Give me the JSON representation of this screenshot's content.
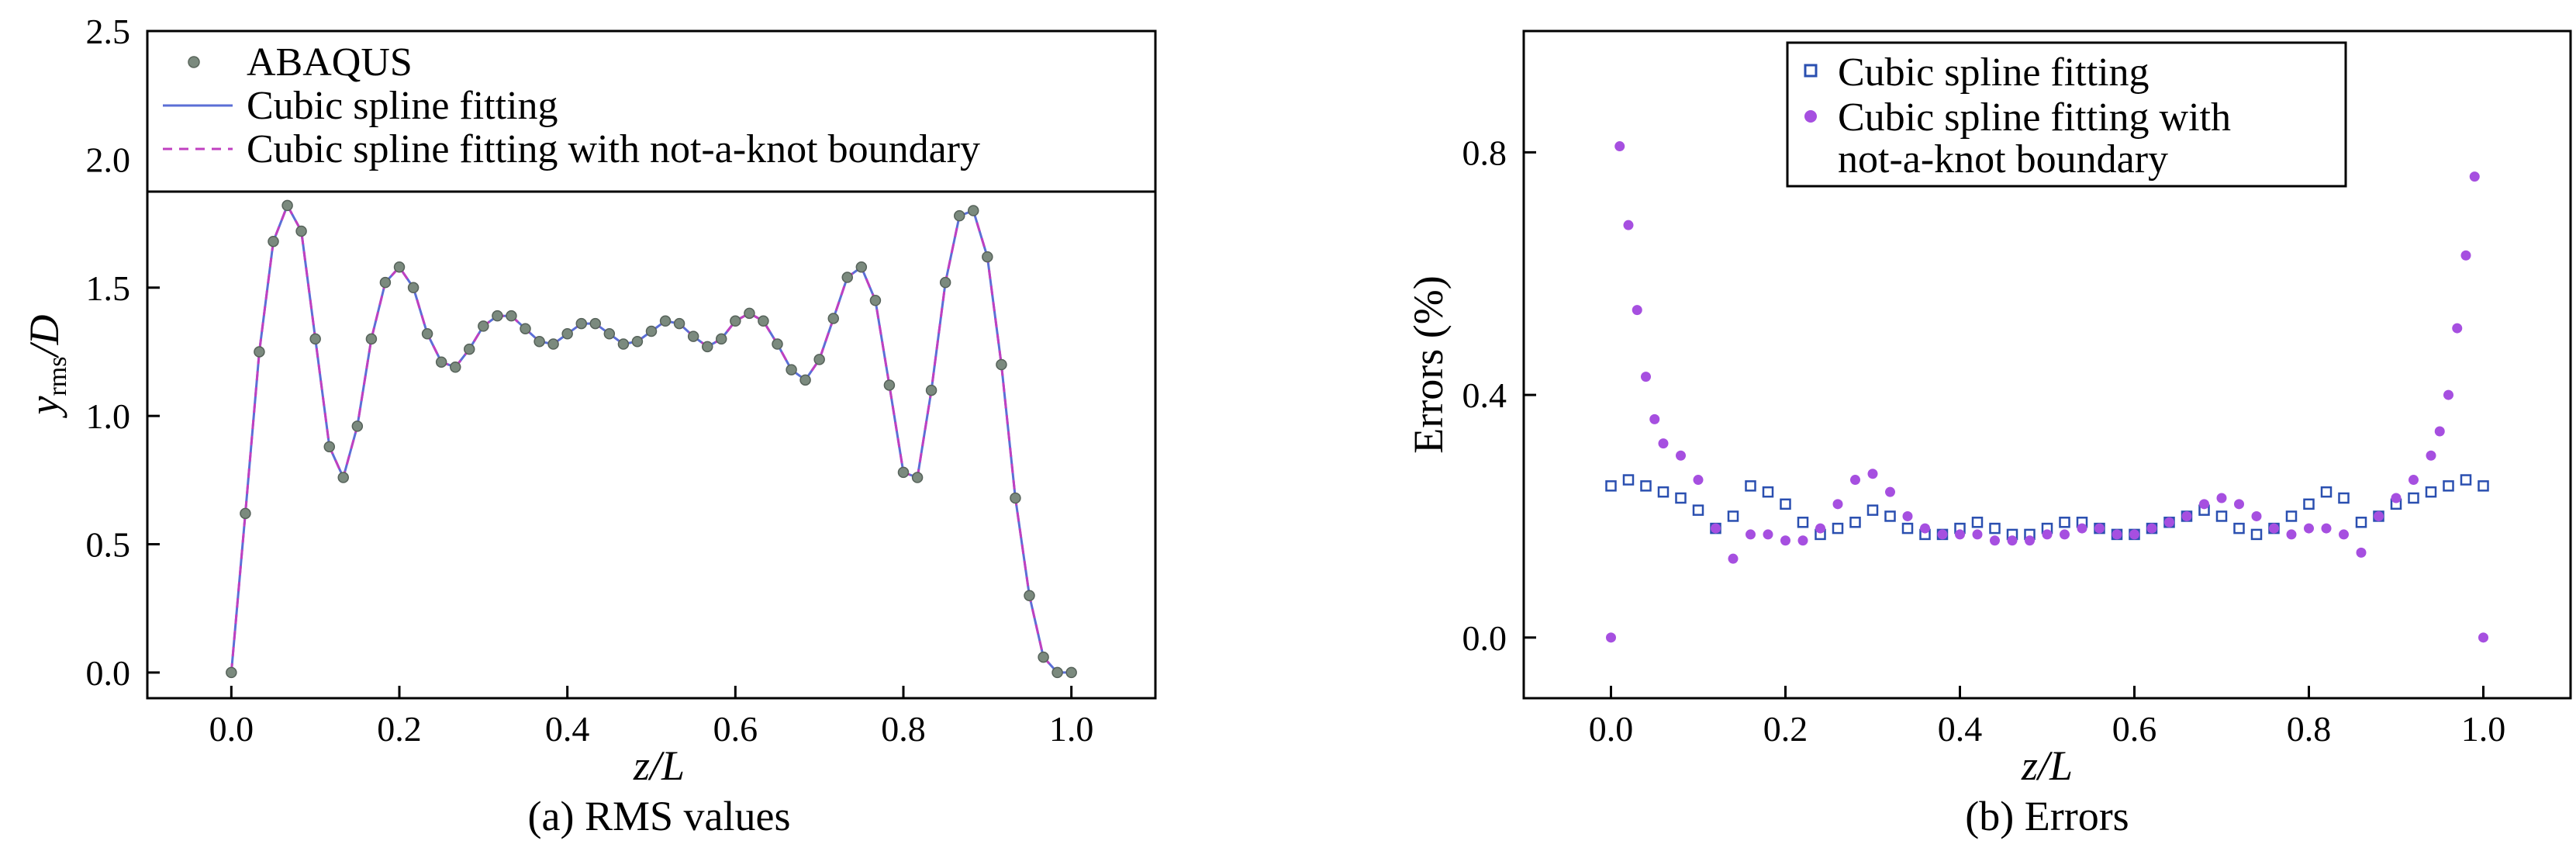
{
  "figure": {
    "captions": [
      "(a) RMS values",
      "(b) Errors"
    ]
  },
  "chart_data": [
    {
      "type": "line",
      "title": "(a) RMS values",
      "xlabel": "z/L",
      "ylabel_main": "y",
      "ylabel_sub": "rms",
      "ylabel_tail": "/D",
      "xlim": [
        -0.1,
        1.1
      ],
      "ylim": [
        -0.1,
        2.5
      ],
      "xticks": [
        "0.0",
        "0.2",
        "0.4",
        "0.6",
        "0.8",
        "1.0"
      ],
      "xtick_values": [
        0.0,
        0.2,
        0.4,
        0.6,
        0.8,
        1.0
      ],
      "yticks": [
        "0.0",
        "0.5",
        "1.0",
        "1.5",
        "2.0",
        "2.5"
      ],
      "ytick_values": [
        0.0,
        0.5,
        1.0,
        1.5,
        2.0,
        2.5
      ],
      "legend_position": "top",
      "x": [
        0.0,
        0.0167,
        0.0333,
        0.05,
        0.0667,
        0.0833,
        0.1,
        0.1167,
        0.1333,
        0.15,
        0.1667,
        0.1833,
        0.2,
        0.2167,
        0.2333,
        0.25,
        0.2667,
        0.2833,
        0.3,
        0.3167,
        0.3333,
        0.35,
        0.3667,
        0.3833,
        0.4,
        0.4167,
        0.4333,
        0.45,
        0.4667,
        0.4833,
        0.5,
        0.5167,
        0.5333,
        0.55,
        0.5667,
        0.5833,
        0.6,
        0.6167,
        0.6333,
        0.65,
        0.6667,
        0.6833,
        0.7,
        0.7167,
        0.7333,
        0.75,
        0.7667,
        0.7833,
        0.8,
        0.8167,
        0.8333,
        0.85,
        0.8667,
        0.8833,
        0.9,
        0.9167,
        0.9333,
        0.95,
        0.9667,
        0.9833,
        1.0
      ],
      "series": [
        {
          "name": "ABAQUS",
          "marker": "circle",
          "color": "#7b8a7e",
          "values": [
            0.0,
            0.62,
            1.25,
            1.68,
            1.82,
            1.72,
            1.3,
            0.88,
            0.76,
            0.96,
            1.3,
            1.52,
            1.58,
            1.5,
            1.32,
            1.21,
            1.19,
            1.26,
            1.35,
            1.39,
            1.39,
            1.34,
            1.29,
            1.28,
            1.32,
            1.36,
            1.36,
            1.32,
            1.28,
            1.29,
            1.33,
            1.37,
            1.36,
            1.31,
            1.27,
            1.3,
            1.37,
            1.4,
            1.37,
            1.28,
            1.18,
            1.14,
            1.22,
            1.38,
            1.54,
            1.58,
            1.45,
            1.12,
            0.78,
            0.76,
            1.1,
            1.52,
            1.78,
            1.8,
            1.62,
            1.2,
            0.68,
            0.3,
            0.06,
            0.0,
            0.0
          ]
        },
        {
          "name": "Cubic spline fitting",
          "line": "solid",
          "color": "#5b6fd6",
          "values": [
            0.0,
            0.62,
            1.25,
            1.68,
            1.82,
            1.72,
            1.3,
            0.88,
            0.76,
            0.96,
            1.3,
            1.52,
            1.58,
            1.5,
            1.32,
            1.21,
            1.19,
            1.26,
            1.35,
            1.39,
            1.39,
            1.34,
            1.29,
            1.28,
            1.32,
            1.36,
            1.36,
            1.32,
            1.28,
            1.29,
            1.33,
            1.37,
            1.36,
            1.31,
            1.27,
            1.3,
            1.37,
            1.4,
            1.37,
            1.28,
            1.18,
            1.14,
            1.22,
            1.38,
            1.54,
            1.58,
            1.45,
            1.12,
            0.78,
            0.76,
            1.1,
            1.52,
            1.78,
            1.8,
            1.62,
            1.2,
            0.68,
            0.3,
            0.06,
            0.0,
            0.0
          ]
        },
        {
          "name": "Cubic spline fitting with not-a-knot boundary",
          "line": "dashed",
          "color": "#c040c0",
          "values": [
            0.0,
            0.62,
            1.25,
            1.68,
            1.82,
            1.72,
            1.3,
            0.88,
            0.76,
            0.96,
            1.3,
            1.52,
            1.58,
            1.5,
            1.32,
            1.21,
            1.19,
            1.26,
            1.35,
            1.39,
            1.39,
            1.34,
            1.29,
            1.28,
            1.32,
            1.36,
            1.36,
            1.32,
            1.28,
            1.29,
            1.33,
            1.37,
            1.36,
            1.31,
            1.27,
            1.3,
            1.37,
            1.4,
            1.37,
            1.28,
            1.18,
            1.14,
            1.22,
            1.38,
            1.54,
            1.58,
            1.45,
            1.12,
            0.78,
            0.76,
            1.1,
            1.52,
            1.78,
            1.8,
            1.62,
            1.2,
            0.68,
            0.3,
            0.06,
            0.0,
            0.0
          ]
        }
      ]
    },
    {
      "type": "scatter",
      "title": "(b) Errors",
      "xlabel": "z/L",
      "ylabel": "Errors (%)",
      "xlim": [
        -0.1,
        1.1
      ],
      "ylim": [
        -0.1,
        1.0
      ],
      "xticks": [
        "0.0",
        "0.2",
        "0.4",
        "0.6",
        "0.8",
        "1.0"
      ],
      "xtick_values": [
        0.0,
        0.2,
        0.4,
        0.6,
        0.8,
        1.0
      ],
      "yticks": [
        "0.0",
        "0.4",
        "0.8"
      ],
      "ytick_values": [
        0.0,
        0.4,
        0.8
      ],
      "legend_position": "top-center",
      "series": [
        {
          "name": "Cubic spline fitting",
          "marker": "open-square",
          "color": "#2a4fb0",
          "x": [
            0.0,
            0.02,
            0.04,
            0.06,
            0.08,
            0.1,
            0.12,
            0.14,
            0.16,
            0.18,
            0.2,
            0.22,
            0.24,
            0.26,
            0.28,
            0.3,
            0.32,
            0.34,
            0.36,
            0.38,
            0.4,
            0.42,
            0.44,
            0.46,
            0.48,
            0.5,
            0.52,
            0.54,
            0.56,
            0.58,
            0.6,
            0.62,
            0.64,
            0.66,
            0.68,
            0.7,
            0.72,
            0.74,
            0.76,
            0.78,
            0.8,
            0.82,
            0.84,
            0.86,
            0.88,
            0.9,
            0.92,
            0.94,
            0.96,
            0.98,
            1.0
          ],
          "values": [
            0.25,
            0.26,
            0.25,
            0.24,
            0.23,
            0.21,
            0.18,
            0.2,
            0.25,
            0.24,
            0.22,
            0.19,
            0.17,
            0.18,
            0.19,
            0.21,
            0.2,
            0.18,
            0.17,
            0.17,
            0.18,
            0.19,
            0.18,
            0.17,
            0.17,
            0.18,
            0.19,
            0.19,
            0.18,
            0.17,
            0.17,
            0.18,
            0.19,
            0.2,
            0.21,
            0.2,
            0.18,
            0.17,
            0.18,
            0.2,
            0.22,
            0.24,
            0.23,
            0.19,
            0.2,
            0.22,
            0.23,
            0.24,
            0.25,
            0.26,
            0.25
          ]
        },
        {
          "name": "Cubic spline fitting with not-a-knot boundary",
          "marker": "filled-circle",
          "color": "#a64fe0",
          "x": [
            0.0,
            0.01,
            0.02,
            0.03,
            0.04,
            0.05,
            0.06,
            0.08,
            0.1,
            0.12,
            0.14,
            0.16,
            0.18,
            0.2,
            0.22,
            0.24,
            0.26,
            0.28,
            0.3,
            0.32,
            0.34,
            0.36,
            0.38,
            0.4,
            0.42,
            0.44,
            0.46,
            0.48,
            0.5,
            0.52,
            0.54,
            0.56,
            0.58,
            0.6,
            0.62,
            0.64,
            0.66,
            0.68,
            0.7,
            0.72,
            0.74,
            0.76,
            0.78,
            0.8,
            0.82,
            0.84,
            0.86,
            0.88,
            0.9,
            0.92,
            0.94,
            0.95,
            0.96,
            0.97,
            0.98,
            0.99,
            1.0
          ],
          "values": [
            0.0,
            0.81,
            0.68,
            0.54,
            0.43,
            0.36,
            0.32,
            0.3,
            0.26,
            0.18,
            0.13,
            0.17,
            0.17,
            0.16,
            0.16,
            0.18,
            0.22,
            0.26,
            0.27,
            0.24,
            0.2,
            0.18,
            0.17,
            0.17,
            0.17,
            0.16,
            0.16,
            0.16,
            0.17,
            0.17,
            0.18,
            0.18,
            0.17,
            0.17,
            0.18,
            0.19,
            0.2,
            0.22,
            0.23,
            0.22,
            0.2,
            0.18,
            0.17,
            0.18,
            0.18,
            0.17,
            0.14,
            0.2,
            0.23,
            0.26,
            0.3,
            0.34,
            0.4,
            0.51,
            0.63,
            0.76,
            0.0
          ]
        }
      ]
    }
  ]
}
